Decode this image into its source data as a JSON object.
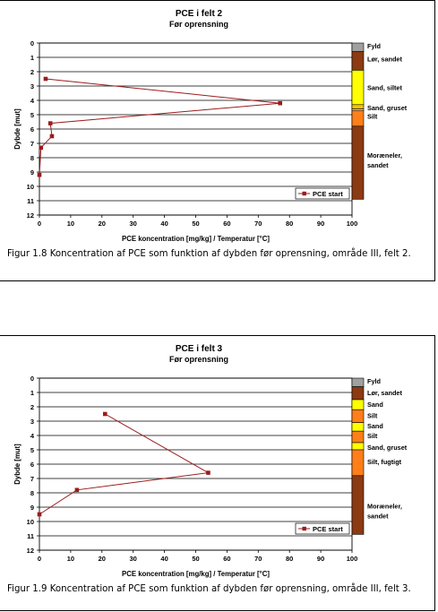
{
  "chart_data": [
    {
      "type": "line",
      "title": "PCE i felt 2",
      "subtitle": "Før oprensning",
      "xlabel": "PCE koncentration [mg/kg] / Temperatur [°C]",
      "ylabel": "Dybde [mut]",
      "xlim": [
        0,
        100
      ],
      "ylim": [
        0,
        12
      ],
      "x_ticks": [
        "0",
        "10",
        "20",
        "30",
        "40",
        "50",
        "60",
        "70",
        "80",
        "90",
        "100"
      ],
      "y_ticks": [
        "0",
        "1",
        "2",
        "3",
        "4",
        "5",
        "6",
        "7",
        "8",
        "9",
        "10",
        "11",
        "12"
      ],
      "y_inverted": true,
      "grid": "horizontal",
      "legend_position": "bottom-right",
      "series": [
        {
          "name": "PCE start",
          "color": "#9b1c1c",
          "points": [
            [
              2,
              2.5
            ],
            [
              77,
              4.2
            ],
            [
              3.5,
              5.6
            ],
            [
              4,
              6.5
            ],
            [
              0.5,
              7.3
            ],
            [
              0,
              9.2
            ]
          ]
        }
      ],
      "soil_layers": [
        {
          "label": "Fyld",
          "from": 0,
          "to": 0.6,
          "color": "#a0a0a0"
        },
        {
          "label": "Lør, sandet",
          "from": 0.6,
          "to": 1.9,
          "color": "#8b3a12"
        },
        {
          "label": "Sand, siltet",
          "from": 1.9,
          "to": 4.3,
          "color": "#ffff00"
        },
        {
          "label": "",
          "from": 4.3,
          "to": 4.6,
          "color": "#f5c200"
        },
        {
          "label": "Sand, gruset",
          "from": 4.6,
          "to": 4.7,
          "color": "#ffffff"
        },
        {
          "label": "Silt",
          "from": 4.7,
          "to": 5.8,
          "color": "#ff7f1a"
        },
        {
          "label": "Moræneler, sandet",
          "from": 5.8,
          "to": 10.9,
          "color": "#8b3a12"
        }
      ],
      "soil_labels": [
        {
          "text": "Fyld",
          "depth": 0.2
        },
        {
          "text": "Lør, sandet",
          "depth": 1.1
        },
        {
          "text": "Sand, siltet",
          "depth": 3.1
        },
        {
          "text": "Sand, gruset",
          "depth": 4.5
        },
        {
          "text": "Silt",
          "depth": 5.1
        },
        {
          "text": "Moræneler,",
          "depth": 7.8
        },
        {
          "text": "sandet",
          "depth": 8.5
        }
      ],
      "caption": "Figur 1.8 Koncentration af PCE som funktion af dybden før oprensning, område III, felt 2."
    },
    {
      "type": "line",
      "title": "PCE i felt 3",
      "subtitle": "Før oprensning",
      "xlabel": "PCE koncentration [mg/kg] / Temperatur [°C]",
      "ylabel": "Dybde [mut]",
      "xlim": [
        0,
        100
      ],
      "ylim": [
        0,
        12
      ],
      "x_ticks": [
        "0",
        "10",
        "20",
        "30",
        "40",
        "50",
        "60",
        "70",
        "80",
        "90",
        "100"
      ],
      "y_ticks": [
        "0",
        "1",
        "2",
        "3",
        "4",
        "5",
        "6",
        "7",
        "8",
        "9",
        "10",
        "11",
        "12"
      ],
      "y_inverted": true,
      "grid": "horizontal",
      "legend_position": "bottom-right",
      "series": [
        {
          "name": "PCE start",
          "color": "#9b1c1c",
          "points": [
            [
              21,
              2.5
            ],
            [
              54,
              6.6
            ],
            [
              12,
              7.8
            ],
            [
              0,
              9.5
            ]
          ]
        }
      ],
      "soil_layers": [
        {
          "label": "Fyld",
          "from": 0,
          "to": 0.6,
          "color": "#a0a0a0"
        },
        {
          "label": "Lør, sandet",
          "from": 0.6,
          "to": 1.5,
          "color": "#8b3a12"
        },
        {
          "label": "Sand",
          "from": 1.5,
          "to": 2.2,
          "color": "#ffff00"
        },
        {
          "label": "Silt",
          "from": 2.2,
          "to": 3.1,
          "color": "#ff7f1a"
        },
        {
          "label": "Sand",
          "from": 3.1,
          "to": 3.7,
          "color": "#ffff00"
        },
        {
          "label": "Silt",
          "from": 3.7,
          "to": 4.5,
          "color": "#ff7f1a"
        },
        {
          "label": "Sand, gruset",
          "from": 4.5,
          "to": 5.0,
          "color": "#ffff00"
        },
        {
          "label": "Silt, fugtigt",
          "from": 5.0,
          "to": 6.8,
          "color": "#ff7f1a"
        },
        {
          "label": "Moræneler, sandet",
          "from": 6.8,
          "to": 10.9,
          "color": "#8b3a12"
        }
      ],
      "soil_labels": [
        {
          "text": "Fyld",
          "depth": 0.2
        },
        {
          "text": "Lør, sandet",
          "depth": 1.0
        },
        {
          "text": "Sand",
          "depth": 1.8
        },
        {
          "text": "Silt",
          "depth": 2.6
        },
        {
          "text": "Sand",
          "depth": 3.3
        },
        {
          "text": "Silt",
          "depth": 4.0
        },
        {
          "text": "Sand, gruset",
          "depth": 4.8
        },
        {
          "text": "Silt, fugtigt",
          "depth": 5.8
        },
        {
          "text": "Moræneler,",
          "depth": 8.9
        },
        {
          "text": "sandet",
          "depth": 9.6
        }
      ],
      "caption": "Figur 1.9 Koncentration af PCE som funktion af dybden før oprensning, område III, felt 3."
    }
  ]
}
